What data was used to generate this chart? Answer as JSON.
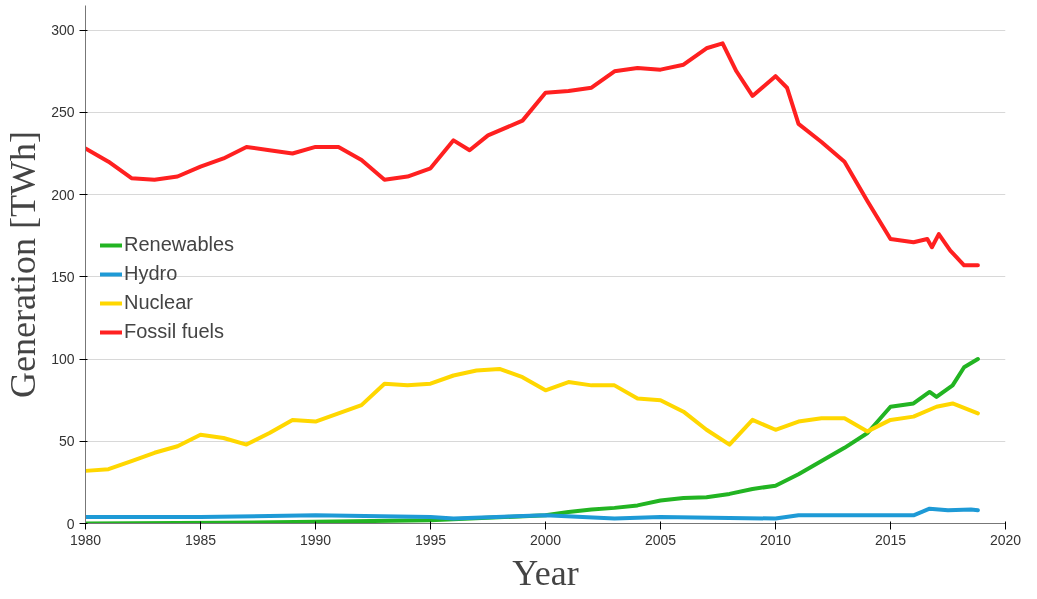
{
  "chart_data": {
    "type": "line",
    "xlabel": "Year",
    "ylabel": "Generation [TWh]",
    "xlim": [
      1980,
      2020
    ],
    "xticks": [
      1980,
      1985,
      1990,
      1995,
      2000,
      2005,
      2010,
      2015,
      2020
    ],
    "ylim": [
      0,
      315
    ],
    "yticks": [
      0,
      50,
      100,
      150,
      200,
      250,
      300
    ],
    "grid": "y",
    "legend": "left",
    "line_style": "solid",
    "marker": "none",
    "series": [
      {
        "name": "Renewables",
        "color": "#22b422",
        "x": [
          1980,
          1986,
          1990,
          1995,
          2000,
          2001,
          2002,
          2003,
          2004,
          2005,
          2006,
          2007,
          2008,
          2009,
          2010,
          2011,
          2012,
          2013,
          2014,
          2015,
          2016,
          2016.7,
          2017,
          2017.7,
          2018.2,
          2018.8
        ],
        "values": [
          0,
          0.5,
          1,
          2,
          5,
          7,
          8.5,
          9.5,
          11,
          14,
          15.5,
          16,
          18,
          21,
          23,
          30,
          38,
          46,
          55,
          71,
          73,
          80,
          77,
          84,
          95,
          100
        ]
      },
      {
        "name": "Hydro",
        "color": "#1e9ad6",
        "x": [
          1980,
          1985,
          1990,
          1995,
          1996,
          2000,
          2003,
          2005,
          2010,
          2011,
          2015,
          2016,
          2016.7,
          2017.5,
          2018.5,
          2018.8
        ],
        "values": [
          4,
          4,
          5,
          4,
          3,
          5,
          3,
          4,
          3,
          5,
          5,
          5,
          9,
          8,
          8.5,
          8
        ]
      },
      {
        "name": "Nuclear",
        "color": "#ffd700",
        "x": [
          1980,
          1981,
          1982,
          1983,
          1984,
          1985,
          1986,
          1987,
          1988,
          1989,
          1990,
          1991,
          1992,
          1993,
          1994,
          1995,
          1996,
          1997,
          1998,
          1999,
          2000,
          2001,
          2002,
          2003,
          2004,
          2005,
          2006,
          2007,
          2008,
          2009,
          2010,
          2011,
          2012,
          2013,
          2014,
          2015,
          2016,
          2017,
          2017.7,
          2018.8
        ],
        "values": [
          32,
          33,
          38,
          43,
          47,
          54,
          52,
          48,
          55,
          63,
          62,
          67,
          72,
          85,
          84,
          85,
          90,
          93,
          94,
          89,
          81,
          86,
          84,
          84,
          76,
          75,
          68,
          57,
          48,
          63,
          57,
          62,
          64,
          64,
          56,
          63,
          65,
          71,
          73,
          67
        ]
      },
      {
        "name": "Fossil fuels",
        "color": "#ff2020",
        "x": [
          1980,
          1981,
          1982,
          1983,
          1984,
          1985,
          1986,
          1987,
          1988,
          1989,
          1990,
          1991,
          1992,
          1993,
          1994,
          1995,
          1996,
          1996.7,
          1997.5,
          1999,
          2000,
          2001,
          2002,
          2003,
          2004,
          2005,
          2006,
          2007,
          2007.7,
          2008.3,
          2009,
          2010,
          2010.5,
          2011,
          2012,
          2013,
          2014,
          2015,
          2016,
          2016.6,
          2016.8,
          2017.1,
          2017.6,
          2018.2,
          2018.8
        ],
        "values": [
          228,
          220,
          210,
          209,
          211,
          217,
          222,
          229,
          227,
          225,
          229,
          229,
          221,
          209,
          211,
          216,
          233,
          227,
          236,
          245,
          262,
          263,
          265,
          275,
          277,
          276,
          279,
          289,
          292,
          275,
          260,
          272,
          265,
          243,
          232,
          220,
          196,
          173,
          171,
          173,
          168,
          176,
          166,
          157,
          157
        ]
      }
    ]
  }
}
